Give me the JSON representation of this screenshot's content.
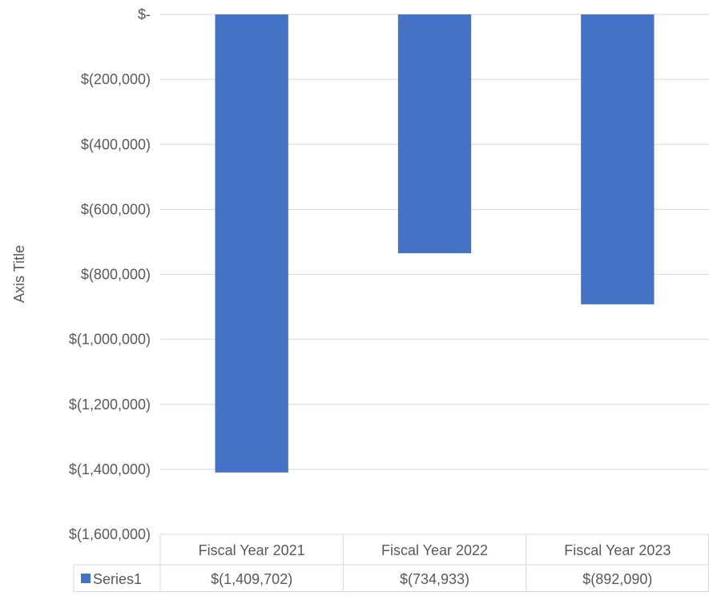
{
  "chart_data": {
    "type": "bar",
    "ylabel": "Axis Title",
    "categories": [
      "Fiscal Year 2021",
      "Fiscal Year 2022",
      "Fiscal Year 2023"
    ],
    "series": [
      {
        "name": "Series1",
        "values": [
          -1409702,
          -734933,
          -892090
        ],
        "color": "#4472C4"
      }
    ],
    "ylim": [
      -1600000,
      0
    ],
    "ytick_values": [
      0,
      -200000,
      -400000,
      -600000,
      -800000,
      -1000000,
      -1200000,
      -1400000,
      -1600000
    ],
    "ytick_labels": [
      "$-",
      "$(200,000)",
      "$(400,000)",
      "$(600,000)",
      "$(800,000)",
      "$(1,000,000)",
      "$(1,200,000)",
      "$(1,400,000)",
      "$(1,600,000)"
    ],
    "data_table": {
      "row_label": "Series1",
      "cells": [
        "$(1,409,702)",
        "$(734,933)",
        "$(892,090)"
      ]
    },
    "grid": true,
    "legend": "data-table"
  }
}
